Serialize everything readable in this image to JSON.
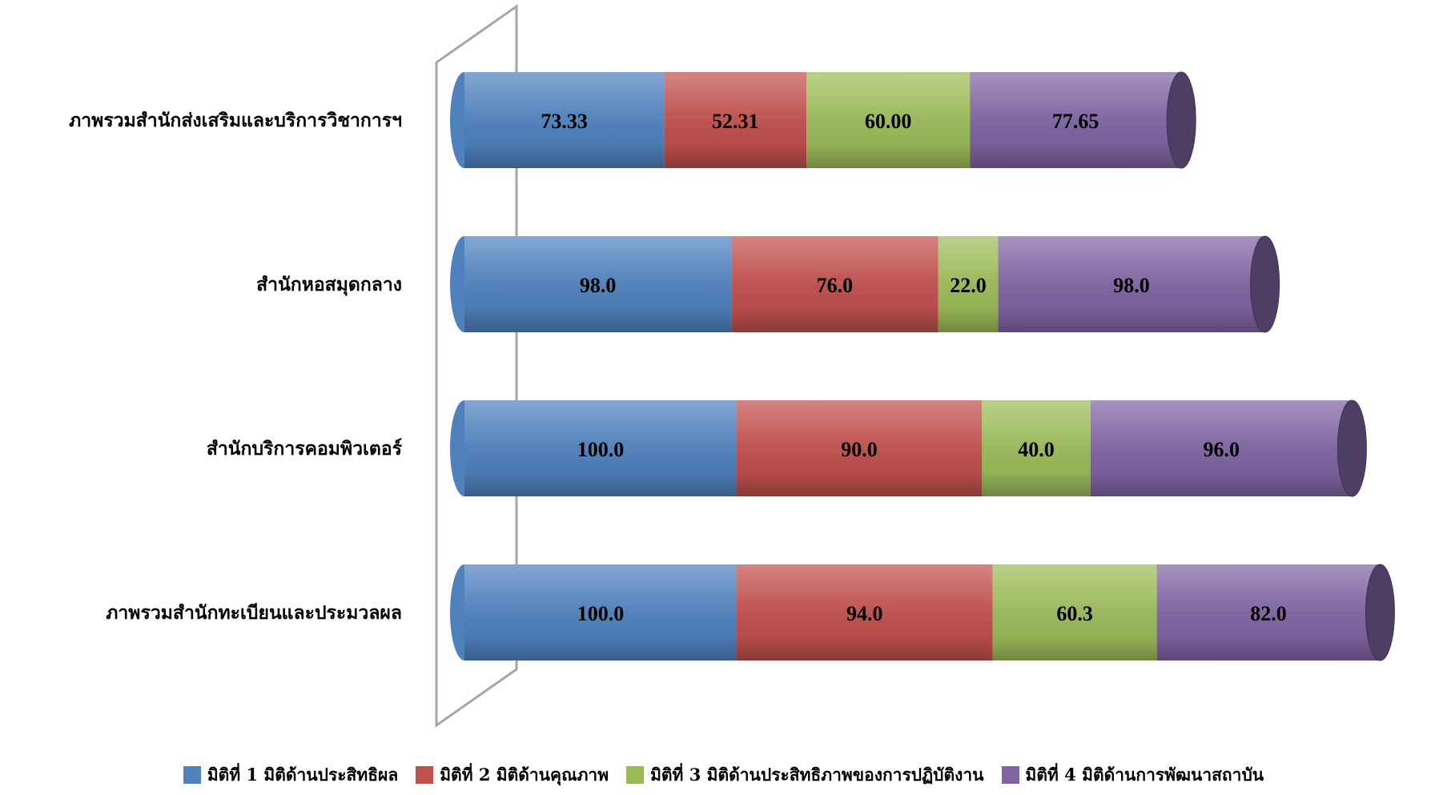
{
  "chart_data": {
    "type": "bar",
    "orientation": "horizontal",
    "stacked": true,
    "style": "3d-cylinder",
    "title": "",
    "xlabel": "",
    "ylabel": "",
    "categories": [
      "ภาพรวมสำนักส่งเสริมและบริการวิชาการฯ",
      "สำนักหอสมุดกลาง",
      "สำนักบริการคอมพิวเตอร์",
      "ภาพรวมสำนักทะเบียนและประมวลผล"
    ],
    "series": [
      {
        "name": "มิติที่ 1 มิติด้านประสิทธิผล",
        "color": "#4F81BD",
        "values": [
          73.33,
          98.0,
          100.0,
          100.0
        ],
        "labels": [
          "73.33",
          "98.0",
          "100.0",
          "100.0"
        ]
      },
      {
        "name": "มิติที่ 2 มิติด้านคุณภาพ",
        "color": "#C0504D",
        "values": [
          52.31,
          76.0,
          90.0,
          94.0
        ],
        "labels": [
          "52.31",
          "76.0",
          "90.0",
          "94.0"
        ]
      },
      {
        "name": "มิติที่ 3 มิติด้านประสิทธิภาพของการปฏิบัติงาน",
        "color": "#9BBB59",
        "values": [
          60.0,
          22.0,
          40.0,
          60.3
        ],
        "labels": [
          "60.00",
          "22.0",
          "40.0",
          "60.3"
        ]
      },
      {
        "name": "มิติที่ 4 มิติด้านการพัฒนาสถาบัน",
        "color": "#8064A2",
        "values": [
          77.65,
          98.0,
          96.0,
          82.0
        ],
        "labels": [
          "77.65",
          "98.0",
          "96.0",
          "82.0"
        ]
      }
    ],
    "legend_position": "bottom",
    "grid": false,
    "data_labels": true
  }
}
